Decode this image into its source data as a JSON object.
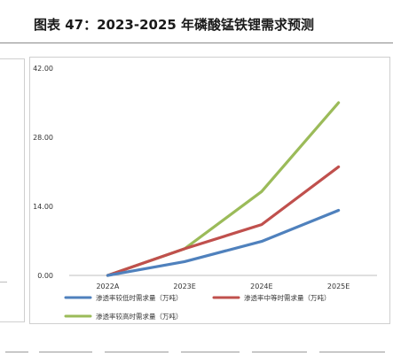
{
  "title": "图表 47：2023-2025 年磷酸锰铁锂需求预测",
  "chart_data": {
    "type": "line",
    "title": "",
    "xlabel": "",
    "ylabel": "",
    "categories": [
      "2022A",
      "2023E",
      "2024E",
      "2025E"
    ],
    "ylim": [
      0,
      42
    ],
    "yticks": [
      0,
      14,
      28,
      42
    ],
    "ytick_labels": [
      "0.00",
      "14.00",
      "28.00",
      "42.00"
    ],
    "grid": false,
    "legend_position": "bottom",
    "series": [
      {
        "name": "渗透率较低时需求量（万吨）",
        "color": "#4f81bd",
        "values": [
          0,
          2.8,
          6.9,
          13.2
        ]
      },
      {
        "name": "渗透率中等时需求量（万吨）",
        "color": "#c0504d",
        "values": [
          0,
          5.4,
          10.3,
          22.0
        ]
      },
      {
        "name": "渗透率较高时需求量（万吨）",
        "color": "#9bbb59",
        "values": [
          0,
          5.4,
          17.0,
          35.0
        ]
      }
    ]
  }
}
